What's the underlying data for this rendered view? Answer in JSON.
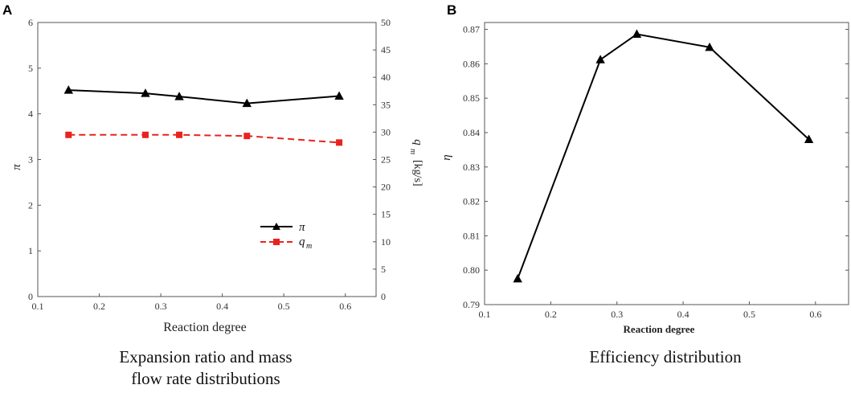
{
  "panels": [
    {
      "label": "A",
      "caption_lines": [
        "Expansion ratio and mass",
        "flow rate distributions"
      ],
      "chart_data": {
        "type": "line",
        "x": [
          0.15,
          0.275,
          0.33,
          0.44,
          0.59
        ],
        "xlabel": "Reaction degree",
        "xlim": [
          0.1,
          0.65
        ],
        "xticks": [
          "0.1",
          "0.2",
          "0.3",
          "0.4",
          "0.5",
          "0.6"
        ],
        "ylabel_left": "π",
        "ylim_left": [
          0,
          6
        ],
        "yticks_left": [
          "0",
          "1",
          "2",
          "3",
          "4",
          "5",
          "6"
        ],
        "ylabel_right_symbol": "q",
        "ylabel_right_sub": "m",
        "ylabel_right_unit": "[kg/s]",
        "ylim_right": [
          0,
          50
        ],
        "yticks_right": [
          "0",
          "5",
          "10",
          "15",
          "20",
          "25",
          "30",
          "35",
          "40",
          "45",
          "50"
        ],
        "series": [
          {
            "name": "π",
            "axis": "left",
            "values": [
              4.52,
              4.45,
              4.38,
              4.23,
              4.39
            ],
            "color": "#000000",
            "marker": "triangle",
            "dash": false
          },
          {
            "name": "q",
            "name_sub": "m",
            "axis": "right",
            "values": [
              29.5,
              29.5,
              29.5,
              29.3,
              28.1
            ],
            "color": "#e8231f",
            "marker": "square",
            "dash": true
          }
        ],
        "legend": "bottom-right"
      }
    },
    {
      "label": "B",
      "caption_lines": [
        "Efficiency distribution"
      ],
      "chart_data": {
        "type": "line",
        "x": [
          0.15,
          0.275,
          0.33,
          0.44,
          0.59
        ],
        "xlabel": "Reaction degree",
        "xlim": [
          0.1,
          0.65
        ],
        "xticks": [
          "0.1",
          "0.2",
          "0.3",
          "0.4",
          "0.5",
          "0.6"
        ],
        "ylabel": "η",
        "ylim": [
          0.79,
          0.872
        ],
        "yticks": [
          "0.79",
          "0.80",
          "0.81",
          "0.82",
          "0.83",
          "0.84",
          "0.85",
          "0.86",
          "0.87"
        ],
        "series": [
          {
            "name": "η",
            "values": [
              0.7975,
              0.8612,
              0.8686,
              0.8648,
              0.838
            ],
            "color": "#000000",
            "marker": "triangle",
            "dash": false
          }
        ]
      }
    }
  ]
}
